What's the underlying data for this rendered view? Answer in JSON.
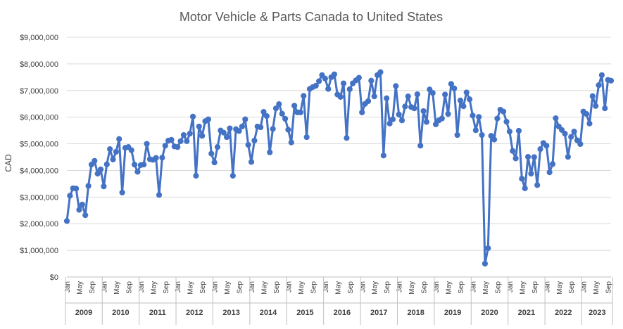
{
  "chart_data": {
    "type": "line",
    "title": "Motor Vehicle & Parts Canada to United States",
    "ylabel": "CAD",
    "xlabel": "",
    "ylim": [
      0,
      9000000
    ],
    "y_ticks": [
      "$0",
      "$1,000,000",
      "$2,000,000",
      "$3,000,000",
      "$4,000,000",
      "$5,000,000",
      "$6,000,000",
      "$7,000,000",
      "$8,000,000",
      "$9,000,000"
    ],
    "y_tick_values": [
      0,
      1000000,
      2000000,
      3000000,
      4000000,
      5000000,
      6000000,
      7000000,
      8000000,
      9000000
    ],
    "month_tick_labels": [
      "Jan",
      "May",
      "Sep"
    ],
    "years": [
      "2009",
      "2010",
      "2011",
      "2012",
      "2013",
      "2014",
      "2015",
      "2016",
      "2017",
      "2018",
      "2019",
      "2020",
      "2021",
      "2022",
      "2023"
    ],
    "grid": true,
    "series_color": "#4472C4",
    "series": [
      {
        "values": [
          2100000,
          3050000,
          3330000,
          3320000,
          2520000,
          2720000,
          2320000,
          3420000,
          4220000,
          4360000,
          3880000,
          4040000,
          3400000,
          4230000,
          4800000,
          4410000,
          4700000,
          5180000,
          3170000,
          4850000,
          4880000,
          4760000,
          4220000,
          3950000,
          4200000,
          4220000,
          5000000,
          4420000,
          4400000,
          4470000,
          3080000,
          4480000,
          4930000,
          5120000,
          5150000,
          4900000,
          4880000,
          5100000,
          5330000,
          5100000,
          5380000,
          6020000,
          3800000,
          5650000,
          5300000,
          5850000,
          5920000,
          4630000,
          4300000,
          4880000,
          5500000,
          5420000,
          5250000,
          5580000,
          3800000,
          5550000,
          5480000,
          5650000,
          5920000,
          4960000,
          4320000,
          5120000,
          5650000,
          5620000,
          6200000,
          6040000,
          4680000,
          5560000,
          6330000,
          6490000,
          6130000,
          5940000,
          5530000,
          5050000,
          6430000,
          6180000,
          6180000,
          6800000,
          5250000,
          7060000,
          7130000,
          7180000,
          7350000,
          7580000,
          7450000,
          7060000,
          7500000,
          7610000,
          6850000,
          6760000,
          7270000,
          5220000,
          7050000,
          7270000,
          7380000,
          7480000,
          6180000,
          6500000,
          6600000,
          7370000,
          6780000,
          7580000,
          7690000,
          4560000,
          6710000,
          5760000,
          5920000,
          7170000,
          6100000,
          5880000,
          6400000,
          6780000,
          6380000,
          6330000,
          6860000,
          4930000,
          6230000,
          5820000,
          7040000,
          6910000,
          5730000,
          5880000,
          5950000,
          6850000,
          6120000,
          7250000,
          7080000,
          5330000,
          6630000,
          6410000,
          6930000,
          6670000,
          6060000,
          5510000,
          6010000,
          5330000,
          500000,
          1080000,
          5300000,
          5160000,
          5950000,
          6280000,
          6210000,
          5830000,
          5460000,
          4730000,
          4450000,
          5490000,
          3690000,
          3330000,
          4510000,
          3880000,
          4500000,
          3450000,
          4800000,
          5030000,
          4930000,
          3930000,
          4240000,
          5960000,
          5650000,
          5520000,
          5380000,
          4510000,
          5260000,
          5460000,
          5130000,
          4990000,
          6210000,
          6120000,
          5760000,
          6790000,
          6420000,
          7200000,
          7580000,
          6330000,
          7400000,
          7370000
        ]
      }
    ]
  }
}
